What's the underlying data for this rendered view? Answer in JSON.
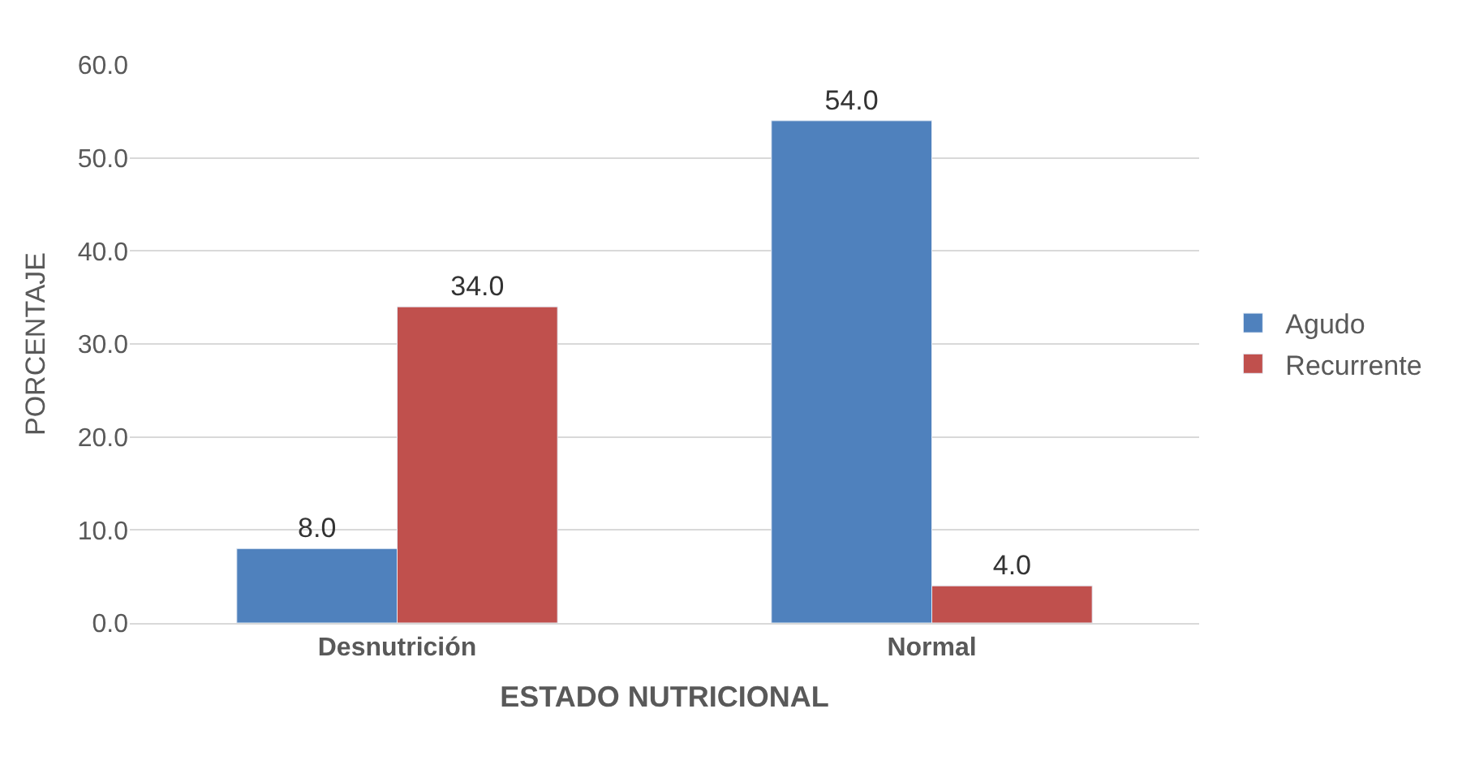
{
  "chart_data": {
    "type": "bar",
    "xlabel": "ESTADO NUTRICIONAL",
    "ylabel": "PORCENTAJE",
    "categories": [
      "Desnutrición",
      "Normal"
    ],
    "series": [
      {
        "name": "Agudo",
        "color": "#4f81bd",
        "values": [
          8,
          54
        ],
        "value_labels": [
          "8.0",
          "54.0"
        ]
      },
      {
        "name": "Recurrente",
        "color": "#c0504d",
        "values": [
          34,
          4
        ],
        "value_labels": [
          "34.0",
          "4.0"
        ]
      }
    ],
    "ylim": [
      0,
      60
    ],
    "yticks": [
      {
        "value": 0,
        "label": "0.0"
      },
      {
        "value": 10,
        "label": "10.0"
      },
      {
        "value": 20,
        "label": "20.0"
      },
      {
        "value": 30,
        "label": "30.0"
      },
      {
        "value": 40,
        "label": "40.0"
      },
      {
        "value": 50,
        "label": "50.0"
      },
      {
        "value": 60,
        "label": "60.0"
      }
    ],
    "grid": "y",
    "legend": "right"
  }
}
